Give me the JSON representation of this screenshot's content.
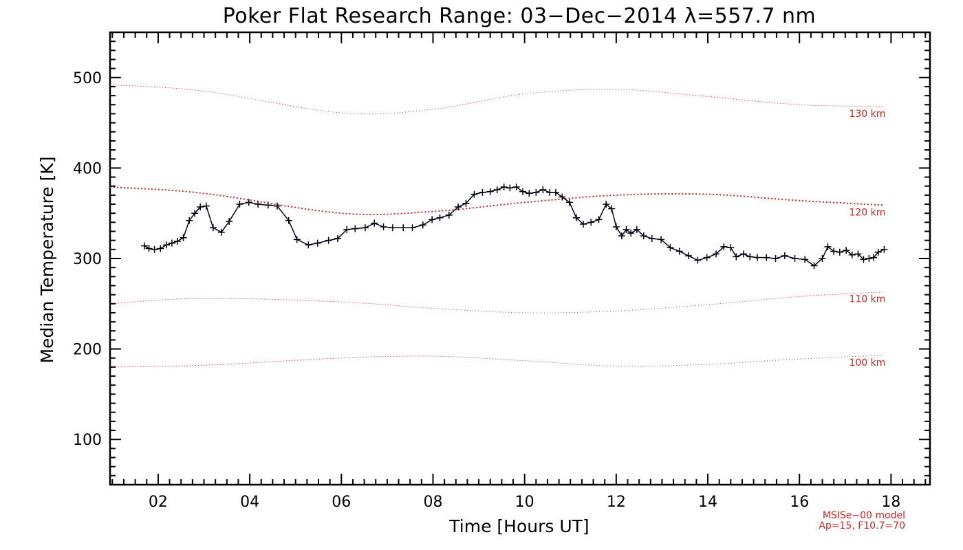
{
  "chart_data": {
    "type": "line",
    "title": "Poker Flat Research Range: 03−Dec−2014 λ=557.7 nm",
    "xlabel": "Time [Hours UT]",
    "ylabel": "Median Temperature [K]",
    "xlim": [
      0.95,
      18.85
    ],
    "ylim": [
      50,
      550
    ],
    "x_ticks": [
      2,
      4,
      6,
      8,
      10,
      12,
      14,
      16,
      18
    ],
    "x_tick_labels": [
      "02",
      "04",
      "06",
      "08",
      "10",
      "12",
      "14",
      "16",
      "18"
    ],
    "y_ticks": [
      100,
      200,
      300,
      400,
      500
    ],
    "y_tick_labels": [
      "100",
      "200",
      "300",
      "400",
      "500"
    ],
    "grid": false,
    "series": [
      {
        "color": "#000033",
        "marker": "+",
        "x": [
          1.7,
          1.8,
          1.92,
          2.05,
          2.18,
          2.3,
          2.42,
          2.55,
          2.68,
          2.8,
          2.92,
          3.05,
          3.2,
          3.38,
          3.55,
          3.78,
          3.98,
          4.18,
          4.4,
          4.6,
          4.85,
          5.03,
          5.28,
          5.48,
          5.72,
          5.92,
          6.12,
          6.3,
          6.52,
          6.72,
          6.92,
          7.12,
          7.35,
          7.55,
          7.78,
          7.98,
          8.15,
          8.35,
          8.55,
          8.72,
          8.9,
          9.08,
          9.25,
          9.4,
          9.55,
          9.68,
          9.82,
          9.96,
          10.1,
          10.25,
          10.4,
          10.55,
          10.68,
          10.82,
          10.98,
          11.13,
          11.28,
          11.45,
          11.62,
          11.78,
          11.9,
          12.0,
          12.12,
          12.22,
          12.32,
          12.45,
          12.6,
          12.78,
          12.98,
          13.18,
          13.38,
          13.58,
          13.78,
          13.98,
          14.18,
          14.35,
          14.5,
          14.62,
          14.78,
          14.92,
          15.08,
          15.28,
          15.48,
          15.68,
          15.9,
          16.12,
          16.32,
          16.5,
          16.62,
          16.75,
          16.88,
          17.02,
          17.15,
          17.28,
          17.4,
          17.52,
          17.62,
          17.72,
          17.85
        ],
        "y": [
          314,
          311,
          310,
          311,
          315,
          317,
          319,
          323,
          342,
          350,
          357,
          358,
          334,
          329,
          341,
          360,
          362,
          360,
          359,
          358,
          342,
          321,
          315,
          317,
          320,
          322,
          332,
          333,
          334,
          339,
          335,
          334,
          334,
          334,
          337,
          343,
          345,
          348,
          357,
          361,
          371,
          373,
          374,
          376,
          379,
          378,
          379,
          374,
          372,
          373,
          376,
          373,
          373,
          368,
          362,
          345,
          338,
          340,
          343,
          360,
          355,
          335,
          325,
          332,
          328,
          332,
          325,
          322,
          321,
          312,
          308,
          303,
          298,
          301,
          305,
          313,
          312,
          302,
          305,
          302,
          301,
          301,
          300,
          303,
          300,
          299,
          292,
          300,
          313,
          308,
          307,
          309,
          304,
          305,
          299,
          300,
          301,
          307,
          310
        ]
      }
    ],
    "model_curves": [
      {
        "label": "130 km",
        "x": [
          0.95,
          3,
          6,
          8,
          10,
          12,
          14,
          16,
          17.85
        ],
        "y": [
          492,
          485,
          461,
          465,
          482,
          487,
          479,
          470,
          468
        ]
      },
      {
        "label": "120 km",
        "x": [
          0.95,
          3,
          6,
          8,
          10,
          12,
          14,
          16,
          17.85
        ],
        "y": [
          379,
          372,
          350,
          352,
          362,
          370,
          371,
          364,
          359
        ]
      },
      {
        "label": "110 km",
        "x": [
          0.95,
          3,
          6,
          8,
          10,
          12,
          14,
          16,
          17.85
        ],
        "y": [
          250,
          256,
          252,
          245,
          240,
          242,
          249,
          258,
          263
        ]
      },
      {
        "label": "100 km",
        "x": [
          0.95,
          3,
          6,
          8,
          10,
          12,
          14,
          16,
          17.85
        ],
        "y": [
          180,
          182,
          190,
          192,
          187,
          181,
          183,
          189,
          193
        ]
      }
    ],
    "model_note_line1": "MSISe−00 model",
    "model_note_line2": "Ap=15, F10.7=70"
  }
}
